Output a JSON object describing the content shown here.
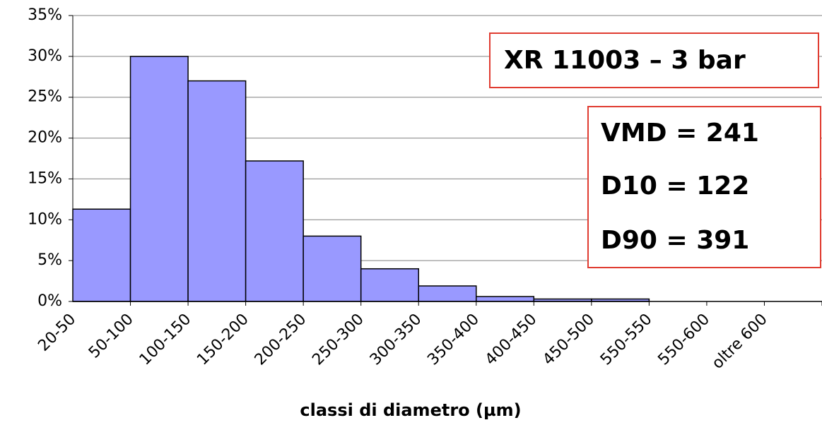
{
  "chart_data": {
    "type": "bar",
    "categories": [
      "20-50",
      "50-100",
      "100-150",
      "150-200",
      "200-250",
      "250-300",
      "300-350",
      "350-400",
      "400-450",
      "450-500",
      "550-550",
      "550-600",
      "oltre 600"
    ],
    "values": [
      11.3,
      30,
      27,
      17.2,
      8,
      4,
      1.9,
      0.6,
      0.3,
      0.3,
      0,
      0,
      0
    ],
    "color": "#9999ff",
    "xlabel": "classi di diametro (µm)",
    "ylim": [
      0,
      35
    ],
    "yticks": [
      {
        "value": 0,
        "label": "0%"
      },
      {
        "value": 5,
        "label": "5%"
      },
      {
        "value": 10,
        "label": "10%"
      },
      {
        "value": 15,
        "label": "15%"
      },
      {
        "value": 20,
        "label": "20%"
      },
      {
        "value": 25,
        "label": "25%"
      },
      {
        "value": 30,
        "label": "30%"
      },
      {
        "value": 35,
        "label": "35%"
      }
    ],
    "grid": true,
    "annotations": [
      "XR 11003 – 3 bar",
      "VMD = 241",
      "D10 = 122",
      "D90 = 391"
    ]
  }
}
